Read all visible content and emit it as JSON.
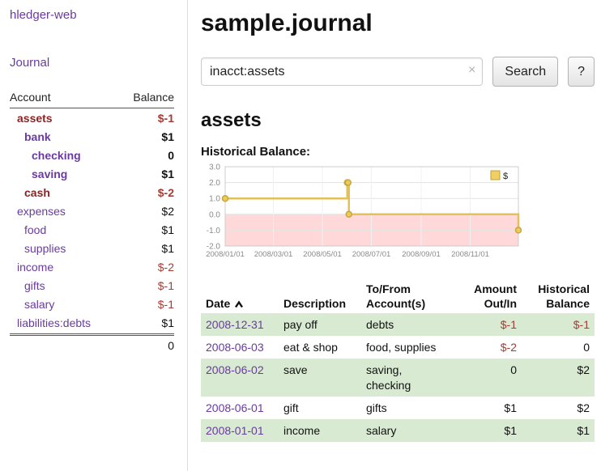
{
  "colors": {
    "link_purple": "#6a3aa2",
    "account_negative_name_red": "#8b2323",
    "negative_amount_red": "#a33c35",
    "row_highlight_green": "#d9ead3",
    "chart_line_gold": "#e3c159",
    "chart_negative_fill_pink": "#ffd9d9"
  },
  "sidebar": {
    "brand": "hledger-web",
    "journal_link": "Journal",
    "accounts_header": {
      "account": "Account",
      "balance": "Balance"
    },
    "accounts": [
      {
        "name": "assets",
        "balance": "$-1",
        "indent": 1,
        "bold": true,
        "name_red": true,
        "negative": true
      },
      {
        "name": "bank",
        "balance": "$1",
        "indent": 2,
        "bold": true,
        "name_red": false,
        "negative": false
      },
      {
        "name": "checking",
        "balance": "0",
        "indent": 3,
        "bold": true,
        "name_red": false,
        "negative": false
      },
      {
        "name": "saving",
        "balance": "$1",
        "indent": 3,
        "bold": true,
        "name_red": false,
        "negative": false
      },
      {
        "name": "cash",
        "balance": "$-2",
        "indent": 2,
        "bold": true,
        "name_red": true,
        "negative": true
      },
      {
        "name": "expenses",
        "balance": "$2",
        "indent": 1,
        "bold": false,
        "name_red": false,
        "negative": false
      },
      {
        "name": "food",
        "balance": "$1",
        "indent": 2,
        "bold": false,
        "name_red": false,
        "negative": false
      },
      {
        "name": "supplies",
        "balance": "$1",
        "indent": 2,
        "bold": false,
        "name_red": false,
        "negative": false
      },
      {
        "name": "income",
        "balance": "$-2",
        "indent": 1,
        "bold": false,
        "name_red": false,
        "negative": true
      },
      {
        "name": "gifts",
        "balance": "$-1",
        "indent": 2,
        "bold": false,
        "name_red": false,
        "negative": true
      },
      {
        "name": "salary",
        "balance": "$-1",
        "indent": 2,
        "bold": false,
        "name_red": false,
        "negative": true
      },
      {
        "name": "liabilities:debts",
        "balance": "$1",
        "indent": 1,
        "bold": false,
        "name_red": false,
        "negative": false
      }
    ],
    "total": "0"
  },
  "main": {
    "title": "sample.journal",
    "search": {
      "value": "inacct:assets",
      "clear_icon": "×",
      "button": "Search",
      "help_button": "?"
    },
    "account_heading": "assets",
    "chart_heading": "Historical Balance:"
  },
  "chart_data": {
    "type": "line",
    "title": "Historical Balance",
    "step": true,
    "legend": "$",
    "ylim": [
      -2,
      3
    ],
    "x_max_day": 365,
    "yticks": [
      {
        "v": 3,
        "label": "3.0"
      },
      {
        "v": 2,
        "label": "2.0"
      },
      {
        "v": 1,
        "label": "1.0"
      },
      {
        "v": 0,
        "label": "0.0"
      },
      {
        "v": -1,
        "label": "-1.0"
      },
      {
        "v": -2,
        "label": "-2.0"
      }
    ],
    "xticks": [
      {
        "d": 0,
        "label": "2008/01/01"
      },
      {
        "d": 60,
        "label": "2008/03/01"
      },
      {
        "d": 121,
        "label": "2008/05/01"
      },
      {
        "d": 182,
        "label": "2008/07/01"
      },
      {
        "d": 244,
        "label": "2008/09/01"
      },
      {
        "d": 305,
        "label": "2008/11/01"
      }
    ],
    "series": [
      {
        "name": "$",
        "points": [
          {
            "x": "2008-01-01",
            "d": 0,
            "v": 1
          },
          {
            "x": "2008-06-01",
            "d": 152,
            "v": 2
          },
          {
            "x": "2008-06-02",
            "d": 153,
            "v": 2
          },
          {
            "x": "2008-06-03",
            "d": 154,
            "v": 0
          },
          {
            "x": "2008-12-31",
            "d": 365,
            "v": -1
          }
        ]
      }
    ]
  },
  "transactions": {
    "headers": {
      "date": "Date",
      "description": "Description",
      "tofrom": "To/From Account(s)",
      "amount": "Amount Out/In",
      "balance": "Historical Balance"
    },
    "rows": [
      {
        "date": "2008-12-31",
        "description": "pay off",
        "accounts": "debts",
        "amount": "$-1",
        "amount_negative": true,
        "balance": "$-1",
        "balance_negative": true
      },
      {
        "date": "2008-06-03",
        "description": "eat & shop",
        "accounts": "food, supplies",
        "amount": "$-2",
        "amount_negative": true,
        "balance": "0",
        "balance_negative": false
      },
      {
        "date": "2008-06-02",
        "description": "save",
        "accounts": "saving, checking",
        "amount": "0",
        "amount_negative": false,
        "balance": "$2",
        "balance_negative": false
      },
      {
        "date": "2008-06-01",
        "description": "gift",
        "accounts": "gifts",
        "amount": "$1",
        "amount_negative": false,
        "balance": "$2",
        "balance_negative": false
      },
      {
        "date": "2008-01-01",
        "description": "income",
        "accounts": "salary",
        "amount": "$1",
        "amount_negative": false,
        "balance": "$1",
        "balance_negative": false
      }
    ]
  }
}
